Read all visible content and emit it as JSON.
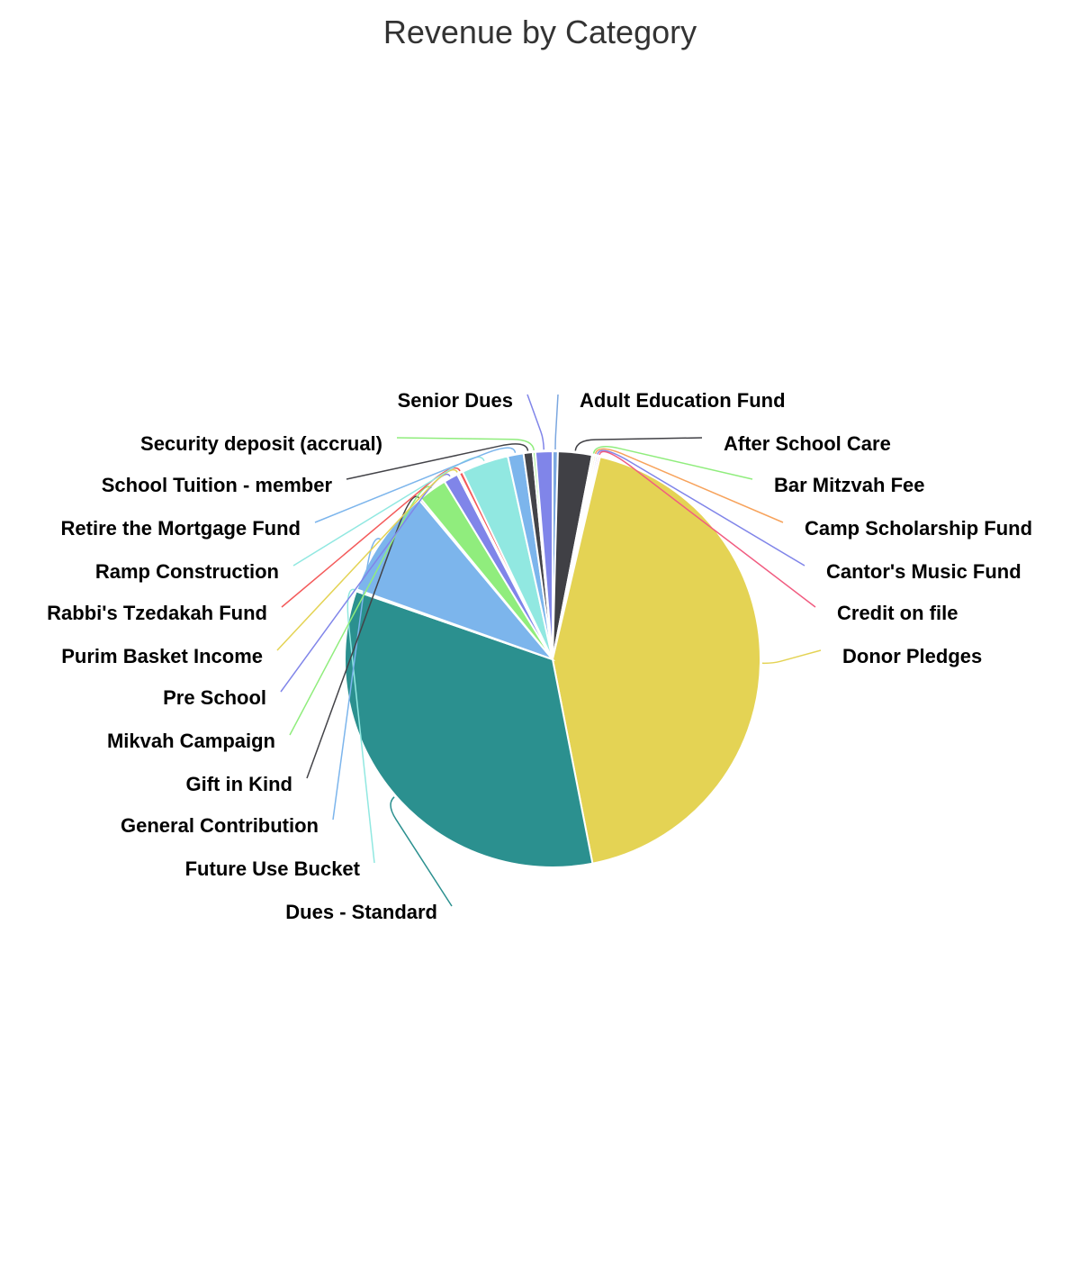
{
  "chart_data": {
    "type": "pie",
    "title": "Revenue by Category",
    "slices": [
      {
        "label": "Adult Education Fund",
        "value": 0.4,
        "color": "#7ba7e0"
      },
      {
        "label": "After School Care",
        "value": 2.6,
        "color": "#404045"
      },
      {
        "label": "Bar Mitzvah Fee",
        "value": 0.15,
        "color": "#90ed7d"
      },
      {
        "label": "Camp Scholarship Fund",
        "value": 0.15,
        "color": "#f7a35c"
      },
      {
        "label": "Cantor's Music Fund",
        "value": 0.15,
        "color": "#8085e9"
      },
      {
        "label": "Credit on file",
        "value": 0.15,
        "color": "#f15c80"
      },
      {
        "label": "Donor Pledges",
        "value": 42.5,
        "color": "#e4d354"
      },
      {
        "label": "Dues - Standard",
        "value": 32.8,
        "color": "#2b908f"
      },
      {
        "label": "Future Use Bucket",
        "value": 0.15,
        "color": "#91e8e1"
      },
      {
        "label": "General Contribution",
        "value": 8.3,
        "color": "#7cb5ec"
      },
      {
        "label": "Gift in Kind",
        "value": 0.15,
        "color": "#434348"
      },
      {
        "label": "Mikvah Campaign",
        "value": 2.2,
        "color": "#90ed7d"
      },
      {
        "label": "Pre School",
        "value": 1.1,
        "color": "#8085e9"
      },
      {
        "label": "Purim Basket Income",
        "value": 0.15,
        "color": "#e4d354"
      },
      {
        "label": "Rabbi's Tzedakah Fund",
        "value": 0.3,
        "color": "#f45b5b"
      },
      {
        "label": "Ramp Construction",
        "value": 3.6,
        "color": "#91e8e1"
      },
      {
        "label": "Retire the Mortgage Fund",
        "value": 1.2,
        "color": "#7cb5ec"
      },
      {
        "label": "School Tuition - member",
        "value": 0.7,
        "color": "#434348"
      },
      {
        "label": "Security deposit (accrual)",
        "value": 0.2,
        "color": "#90ed7d"
      },
      {
        "label": "Senior Dues",
        "value": 1.3,
        "color": "#8085e9"
      }
    ],
    "legend": "none",
    "data_labels": "outside with connector lines"
  }
}
